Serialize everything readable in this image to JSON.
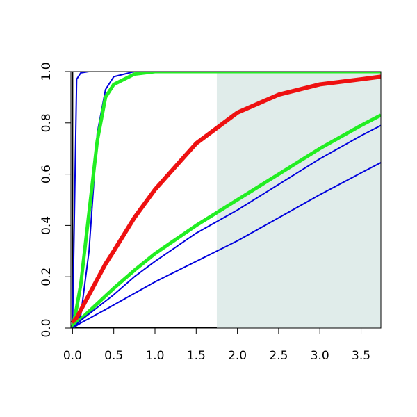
{
  "chart_data": {
    "type": "line",
    "x": [
      0,
      0.05,
      0.1,
      0.2,
      0.3,
      0.4,
      0.5,
      0.75,
      1,
      1.5,
      2,
      2.5,
      3,
      3.5,
      3.74
    ],
    "xlim": [
      -0.02,
      3.74
    ],
    "ylim": [
      0,
      1
    ],
    "xticks": [
      {
        "value": 0,
        "label": "0.0"
      },
      {
        "value": 0.5,
        "label": "0.5"
      },
      {
        "value": 1,
        "label": "1.0"
      },
      {
        "value": 1.5,
        "label": "1.5"
      },
      {
        "value": 2,
        "label": "2.0"
      },
      {
        "value": 2.5,
        "label": "2.5"
      },
      {
        "value": 3,
        "label": "3.0"
      },
      {
        "value": 3.5,
        "label": "3.5"
      }
    ],
    "yticks": [
      {
        "value": 0,
        "label": "0.0"
      },
      {
        "value": 0.2,
        "label": "0.2"
      },
      {
        "value": 0.4,
        "label": "0.4"
      },
      {
        "value": 0.6,
        "label": "0.6"
      },
      {
        "value": 0.8,
        "label": "0.8"
      },
      {
        "value": 1,
        "label": "1.0"
      }
    ],
    "shade_xlim": [
      1.75,
      3.74
    ],
    "shade_color": "#e0ecea",
    "series": [
      {
        "color": "#000000",
        "width": 2,
        "x": [
          3.74,
          0,
          0,
          3.74
        ],
        "values": [
          1,
          1,
          0,
          0
        ]
      },
      {
        "color": "#0000dd",
        "width": 2,
        "values": [
          0,
          0.97,
          0.995,
          1,
          1,
          1,
          1,
          1,
          1,
          1,
          1,
          1,
          1,
          1,
          1
        ]
      },
      {
        "color": "#0000dd",
        "width": 2,
        "values": [
          0,
          0.01,
          0.05,
          0.3,
          0.76,
          0.93,
          0.98,
          1,
          1,
          1,
          1,
          1,
          1,
          1,
          1
        ]
      },
      {
        "color": "#22ee22",
        "width": 5,
        "values": [
          0,
          0.08,
          0.17,
          0.45,
          0.73,
          0.9,
          0.95,
          0.99,
          1,
          1,
          1,
          1,
          1,
          1,
          1
        ]
      },
      {
        "color": "#ee1111",
        "width": 6,
        "values": [
          0.02,
          0.04,
          0.07,
          0.13,
          0.19,
          0.25,
          0.3,
          0.43,
          0.54,
          0.72,
          0.84,
          0.91,
          0.95,
          0.97,
          0.98
        ]
      },
      {
        "color": "#22ee22",
        "width": 5,
        "values": [
          0,
          0.02,
          0.035,
          0.065,
          0.095,
          0.125,
          0.155,
          0.225,
          0.29,
          0.4,
          0.5,
          0.6,
          0.7,
          0.79,
          0.83
        ]
      },
      {
        "color": "#0000dd",
        "width": 2,
        "values": [
          0,
          0.015,
          0.03,
          0.055,
          0.08,
          0.105,
          0.13,
          0.2,
          0.26,
          0.37,
          0.46,
          0.56,
          0.66,
          0.75,
          0.79
        ]
      },
      {
        "color": "#0000dd",
        "width": 2,
        "values": [
          0,
          0.01,
          0.02,
          0.037,
          0.055,
          0.072,
          0.09,
          0.135,
          0.18,
          0.26,
          0.34,
          0.43,
          0.52,
          0.605,
          0.645
        ]
      }
    ]
  }
}
